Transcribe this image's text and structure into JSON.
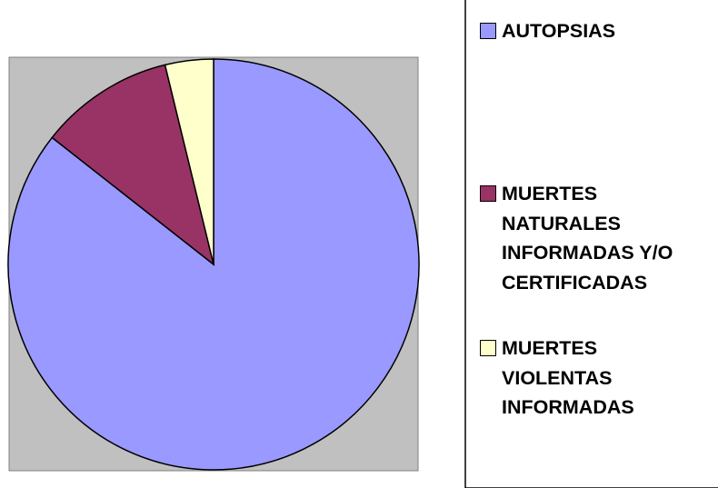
{
  "chart_data": {
    "type": "pie",
    "categories": [
      "AUTOPSIAS",
      "MUERTES NATURALES INFORMADAS Y/O CERTIFICADAS",
      "MUERTES VIOLENTAS INFORMADAS"
    ],
    "values": [
      85.6,
      10.6,
      3.8
    ],
    "colors": [
      "#9999ff",
      "#993366",
      "#ffffcc"
    ],
    "legend": "right"
  }
}
